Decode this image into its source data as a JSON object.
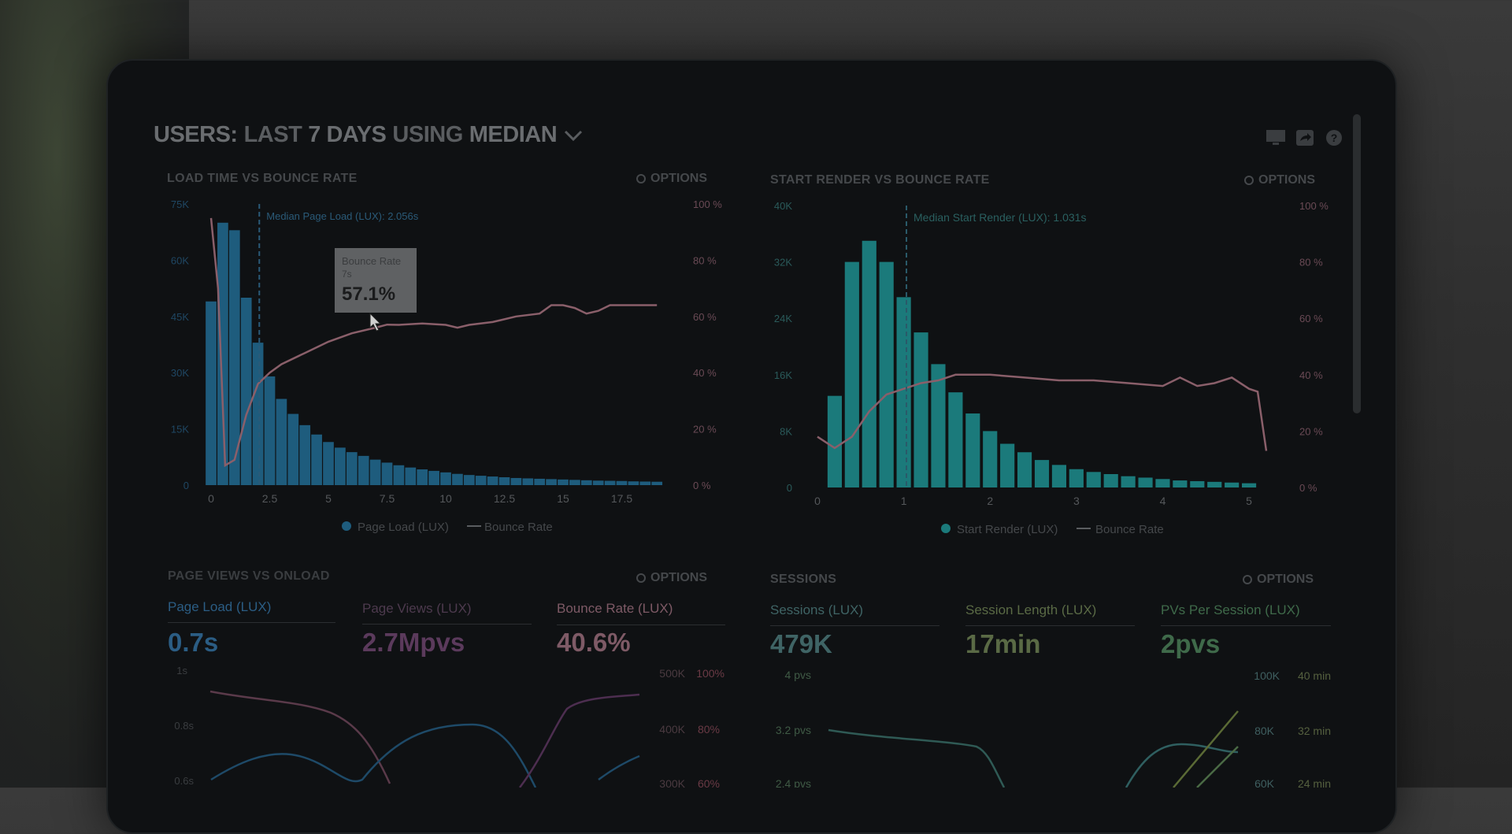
{
  "header": {
    "title_prefix": "USERS:",
    "title_range": "LAST",
    "title_days": "7 DAYS",
    "title_using": "USING",
    "title_stat": "MEDIAN"
  },
  "colors": {
    "bar_blue": "#1e5c7d",
    "bar_teal": "#1b7a7b",
    "bounce_line": "#8a5f6a",
    "muted_text": "#45484b",
    "page_load": "#2b5d84",
    "page_views": "#5b3a5c",
    "bounce_rate": "#7e5a66",
    "sessions": "#3f6465",
    "session_length": "#5a6a45",
    "pvs_per_session": "#3f6a4a"
  },
  "panels": {
    "load_time": {
      "title": "LOAD TIME VS BOUNCE RATE",
      "options": "OPTIONS",
      "annotation": "Median Page Load (LUX): 2.056s",
      "tooltip": {
        "label": "Bounce Rate",
        "sub": "7s",
        "value": "57.1%"
      },
      "legend": [
        "Page Load (LUX)",
        "Bounce Rate"
      ],
      "y_ticks": [
        "75K",
        "60K",
        "45K",
        "30K",
        "15K",
        "0"
      ],
      "y2_ticks": [
        "100 %",
        "80 %",
        "60 %",
        "40 %",
        "20 %",
        "0 %"
      ],
      "x_ticks": [
        "0",
        "2.5",
        "5",
        "7.5",
        "10",
        "12.5",
        "15",
        "17.5"
      ]
    },
    "start_render": {
      "title": "START RENDER VS BOUNCE RATE",
      "options": "OPTIONS",
      "annotation": "Median Start Render (LUX): 1.031s",
      "legend": [
        "Start Render (LUX)",
        "Bounce Rate"
      ],
      "y_ticks": [
        "40K",
        "32K",
        "24K",
        "16K",
        "8K",
        "0"
      ],
      "y2_ticks": [
        "100 %",
        "80 %",
        "60 %",
        "40 %",
        "20 %",
        "0 %"
      ],
      "x_ticks": [
        "0",
        "1",
        "2",
        "3",
        "4",
        "5"
      ]
    },
    "page_views": {
      "title": "PAGE VIEWS VS ONLOAD",
      "options": "OPTIONS",
      "metrics": [
        {
          "label": "Page Load (LUX)",
          "value": "0.7s"
        },
        {
          "label": "Page Views (LUX)",
          "value": "2.7Mpvs"
        },
        {
          "label": "Bounce Rate (LUX)",
          "value": "40.6%"
        }
      ],
      "y_left": [
        "1s",
        "0.8s",
        "0.6s"
      ],
      "y_right_a": [
        "500K",
        "400K",
        "300K"
      ],
      "y_right_b": [
        "100%",
        "80%",
        "60%"
      ]
    },
    "sessions": {
      "title": "SESSIONS",
      "options": "OPTIONS",
      "metrics": [
        {
          "label": "Sessions (LUX)",
          "value": "479K"
        },
        {
          "label": "Session Length (LUX)",
          "value": "17min"
        },
        {
          "label": "PVs Per Session (LUX)",
          "value": "2pvs"
        }
      ],
      "y_left": [
        "4 pvs",
        "3.2 pvs",
        "2.4 pvs"
      ],
      "y_right_a": [
        "100K",
        "80K",
        "60K"
      ],
      "y_right_b": [
        "40 min",
        "32 min",
        "24 min"
      ]
    }
  },
  "chart_data": [
    {
      "type": "bar",
      "title": "LOAD TIME VS BOUNCE RATE",
      "xlabel": "",
      "ylabel": "",
      "xlim": [
        0,
        20
      ],
      "ylim": [
        0,
        75000
      ],
      "y2lim": [
        0,
        100
      ],
      "bar_width": 0.5,
      "x": [
        0,
        0.5,
        1,
        1.5,
        2,
        2.5,
        3,
        3.5,
        4,
        4.5,
        5,
        5.5,
        6,
        6.5,
        7,
        7.5,
        8,
        8.5,
        9,
        9.5,
        10,
        10.5,
        11,
        11.5,
        12,
        12.5,
        13,
        13.5,
        14,
        14.5,
        15,
        15.5,
        16,
        16.5,
        17,
        17.5,
        18,
        18.5,
        19
      ],
      "series": [
        {
          "name": "Page Load (LUX)",
          "kind": "bar",
          "values": [
            49000,
            70000,
            68000,
            50000,
            38000,
            29000,
            23000,
            19000,
            16000,
            13500,
            11500,
            10000,
            8800,
            7800,
            6800,
            6000,
            5300,
            4700,
            4200,
            3800,
            3400,
            3000,
            2700,
            2500,
            2300,
            2100,
            1900,
            1800,
            1700,
            1600,
            1500,
            1400,
            1300,
            1200,
            1150,
            1100,
            1000,
            950,
            900
          ]
        },
        {
          "name": "Bounce Rate",
          "kind": "line",
          "axis": "y2",
          "x": [
            0,
            0.3,
            0.6,
            1,
            1.5,
            2,
            2.5,
            3,
            4,
            5,
            6,
            7,
            7.5,
            8,
            9,
            10,
            10.5,
            11,
            12,
            13,
            14,
            14.5,
            15,
            15.5,
            16,
            16.5,
            17,
            17.5,
            18,
            19
          ],
          "values": [
            95,
            70,
            7,
            9,
            25,
            36,
            40,
            43,
            47,
            51,
            54,
            56,
            57.1,
            57,
            57.5,
            57,
            56,
            57,
            58,
            60,
            61,
            64,
            64,
            63,
            61,
            62,
            64,
            64,
            64,
            64
          ]
        }
      ]
    },
    {
      "type": "bar",
      "title": "START RENDER VS BOUNCE RATE",
      "xlabel": "",
      "ylabel": "",
      "xlim": [
        0,
        5.2
      ],
      "ylim": [
        0,
        40000
      ],
      "y2lim": [
        0,
        100
      ],
      "bar_width": 0.18,
      "x": [
        0.2,
        0.4,
        0.6,
        0.8,
        1.0,
        1.2,
        1.4,
        1.6,
        1.8,
        2.0,
        2.2,
        2.4,
        2.6,
        2.8,
        3.0,
        3.2,
        3.4,
        3.6,
        3.8,
        4.0,
        4.2,
        4.4,
        4.6,
        4.8,
        5.0
      ],
      "series": [
        {
          "name": "Start Render (LUX)",
          "kind": "bar",
          "values": [
            13000,
            32000,
            35000,
            32000,
            27000,
            22000,
            17500,
            13500,
            10500,
            8000,
            6200,
            5000,
            3900,
            3200,
            2600,
            2200,
            1900,
            1600,
            1400,
            1200,
            1000,
            900,
            800,
            700,
            600
          ]
        },
        {
          "name": "Bounce Rate",
          "kind": "line",
          "axis": "y2",
          "x": [
            0,
            0.2,
            0.4,
            0.6,
            0.8,
            1.0,
            1.2,
            1.4,
            1.6,
            1.8,
            2.0,
            2.4,
            2.8,
            3.2,
            3.6,
            4.0,
            4.2,
            4.4,
            4.6,
            4.8,
            5.0,
            5.1,
            5.2
          ],
          "values": [
            18,
            14,
            18,
            27,
            33,
            35,
            37,
            38,
            40,
            40,
            40,
            39,
            38,
            38,
            37,
            36,
            39,
            36,
            37,
            39,
            35,
            34,
            13
          ]
        }
      ]
    }
  ]
}
